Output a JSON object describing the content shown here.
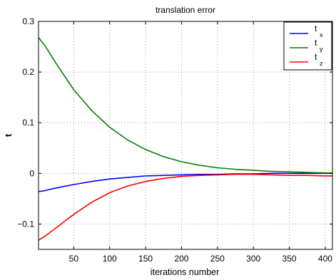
{
  "chart_data": {
    "type": "line",
    "title": "translation error",
    "xlabel": "iterations number",
    "ylabel": "t",
    "xlim": [
      1,
      410
    ],
    "ylim": [
      -0.15,
      0.3
    ],
    "xticks": [
      50,
      100,
      150,
      200,
      250,
      300,
      350,
      400
    ],
    "yticks": [
      -0.1,
      0,
      0.1,
      0.2,
      0.3
    ],
    "ytick_labels": [
      "−0.1",
      "0",
      "0.1",
      "0.2",
      "0.3"
    ],
    "grid": true,
    "legend_position": "top-right",
    "x": [
      1,
      10,
      25,
      50,
      75,
      100,
      125,
      150,
      175,
      200,
      225,
      250,
      275,
      300,
      325,
      350,
      375,
      400,
      410
    ],
    "series": [
      {
        "legend_base": "t",
        "legend_sub": "x",
        "color": "#0000ff",
        "values": [
          -0.036,
          -0.034,
          -0.029,
          -0.022,
          -0.016,
          -0.011,
          -0.008,
          -0.005,
          -0.004,
          -0.003,
          -0.002,
          -0.002,
          -0.001,
          -0.001,
          0.0,
          0.0,
          0.0,
          0.0,
          0.0
        ]
      },
      {
        "legend_base": "t",
        "legend_sub": "y",
        "color": "#007f00",
        "values": [
          0.268,
          0.252,
          0.218,
          0.165,
          0.124,
          0.091,
          0.066,
          0.047,
          0.033,
          0.023,
          0.016,
          0.011,
          0.008,
          0.006,
          0.004,
          0.003,
          0.002,
          0.001,
          0.001
        ]
      },
      {
        "legend_base": "t",
        "legend_sub": "z",
        "color": "#ff0000",
        "values": [
          -0.132,
          -0.124,
          -0.108,
          -0.081,
          -0.057,
          -0.038,
          -0.025,
          -0.016,
          -0.01,
          -0.006,
          -0.004,
          -0.003,
          -0.002,
          -0.002,
          -0.003,
          -0.004,
          -0.004,
          -0.005,
          -0.005
        ]
      }
    ]
  }
}
